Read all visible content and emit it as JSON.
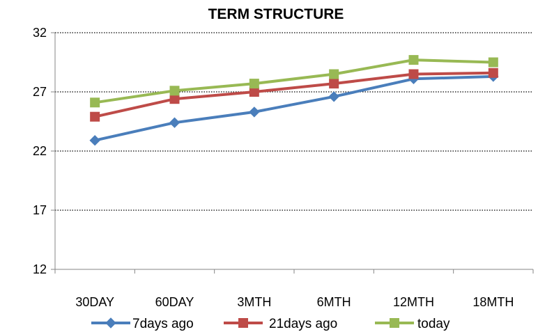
{
  "chart_data": {
    "type": "line",
    "title": "TERM STRUCTURE",
    "xlabel": "",
    "ylabel": "",
    "categories": [
      "30DAY",
      "60DAY",
      "3MTH",
      "6MTH",
      "12MTH",
      "18MTH"
    ],
    "ylim": [
      12,
      32
    ],
    "yticks": [
      "12",
      "17",
      "22",
      "27",
      "32"
    ],
    "grid": "horizontal-dotted",
    "legend_position": "bottom",
    "series": [
      {
        "name": "7days ago",
        "color": "#4a7ebb",
        "marker": "diamond",
        "values": [
          22.9,
          24.4,
          25.3,
          26.6,
          28.1,
          28.3
        ]
      },
      {
        "name": "21days ago",
        "color": "#be4b48",
        "marker": "square",
        "values": [
          24.9,
          26.4,
          27.0,
          27.7,
          28.5,
          28.6
        ]
      },
      {
        "name": "today",
        "color": "#98b954",
        "marker": "square",
        "values": [
          26.1,
          27.1,
          27.7,
          28.5,
          29.7,
          29.5
        ]
      }
    ]
  }
}
